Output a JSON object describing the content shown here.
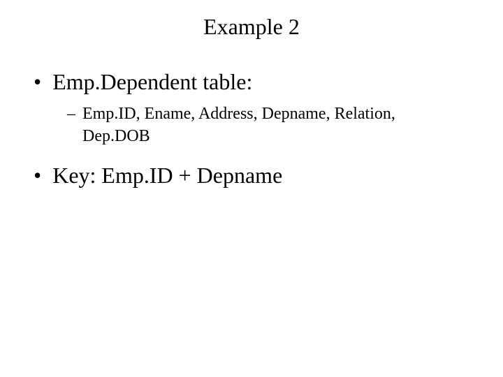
{
  "slide": {
    "title": "Example 2",
    "title_fontsize": 32,
    "body_fontsize_l1": 32,
    "body_fontsize_l2": 24,
    "font_family": "Times New Roman",
    "background_color": "#ffffff",
    "text_color": "#000000",
    "bullets": {
      "item1": {
        "marker": "•",
        "text": "Emp.Dependent table:"
      },
      "item1_sub1": {
        "marker": "–",
        "text": "Emp.ID, Ename, Address, Depname, Relation, Dep.DOB"
      },
      "item2": {
        "marker": "•",
        "text": "Key: Emp.ID + Depname"
      }
    }
  }
}
